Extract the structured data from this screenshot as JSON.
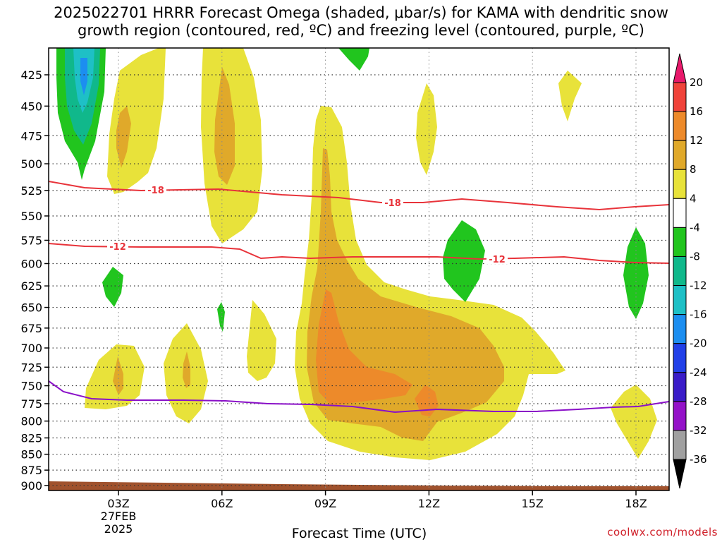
{
  "title": {
    "line1": "2025022701 HRRR Forecast Omega (shaded, μbar/s) for KAMA with dendritic snow",
    "line2": "growth region (contoured, red, ºC) and freezing level (contoured, purple, ºC)"
  },
  "watermark": "coolwx.com/models",
  "chart_data": {
    "type": "heatmap",
    "title": "2025022701 HRRR Forecast Omega (shaded, μbar/s) for KAMA with dendritic snow growth region (contoured, red, ºC) and freezing level (contoured, purple, ºC)",
    "xlabel": "Forecast Time (UTC)",
    "ylabel": "",
    "y_axis": {
      "ticks": [
        425,
        450,
        475,
        500,
        525,
        550,
        575,
        600,
        625,
        650,
        675,
        700,
        725,
        750,
        775,
        800,
        825,
        850,
        875,
        900
      ],
      "scale": "pressure, decreasing upward",
      "grid": true
    },
    "x_axis": {
      "ticks": [
        "03Z",
        "06Z",
        "09Z",
        "12Z",
        "15Z",
        "18Z"
      ],
      "date_label": [
        "27FEB",
        "2025"
      ],
      "grid": true
    },
    "colorbar": {
      "labels": [
        "20",
        "16",
        "12",
        "8",
        "4",
        "-4",
        "-8",
        "-12",
        "-16",
        "-20",
        "-24",
        "-28",
        "-32",
        "-36"
      ],
      "colors": [
        "#e8196b",
        "#f0433a",
        "#ed8a2a",
        "#e0a92a",
        "#e8e23a",
        "#ffffff",
        "#21c51e",
        "#10b88b",
        "#1ec0c6",
        "#1c8ef0",
        "#2140e8",
        "#3a1cc8",
        "#9412c8",
        "#a0a0a0",
        "#000000"
      ],
      "units": "μbar/s"
    },
    "contours": [
      {
        "name": "-18",
        "color": "#e8333a",
        "label": "-18"
      },
      {
        "name": "-12",
        "color": "#e8333a",
        "label": "-12"
      },
      {
        "name": "freezing level",
        "color": "#8a10c8",
        "label": ""
      }
    ],
    "terrain": {
      "color": "#a0522d",
      "level_approx": 900
    }
  }
}
